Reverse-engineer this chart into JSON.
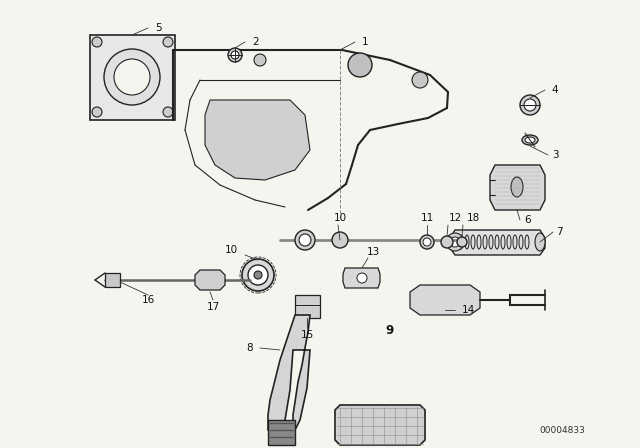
{
  "bg_color": "#f5f5f0",
  "line_color": "#222222",
  "text_color": "#111111",
  "diagram_id": "00004833",
  "figure_width": 6.4,
  "figure_height": 4.48
}
